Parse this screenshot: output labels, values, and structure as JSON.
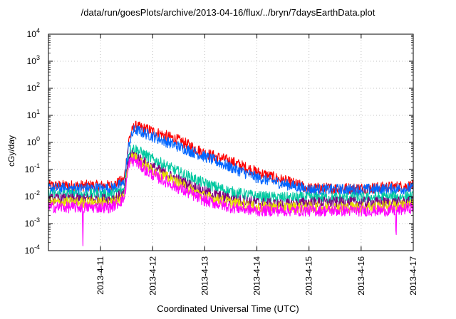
{
  "chart_data": {
    "type": "line",
    "title": "/data/run/goesPlots/archive/2013-04-16/flux/../bryn/7daysEarthData.plot",
    "xlabel": "Coordinated Universal Time (UTC)",
    "ylabel": "cGy/day",
    "y_scale": "log",
    "ylim_exponents": [
      -4,
      4
    ],
    "y_tick_labels": [
      {
        "base": "10",
        "exp": "4"
      },
      {
        "base": "10",
        "exp": "3"
      },
      {
        "base": "10",
        "exp": "2"
      },
      {
        "base": "10",
        "exp": "1"
      },
      {
        "base": "10",
        "exp": "0"
      },
      {
        "base": "10",
        "exp": "-1"
      },
      {
        "base": "10",
        "exp": "-2"
      },
      {
        "base": "10",
        "exp": "-3"
      },
      {
        "base": "10",
        "exp": "-4"
      }
    ],
    "xlim": [
      "2013-04-10",
      "2013-04-17"
    ],
    "x_tick_labels": [
      "2013-4-11",
      "2013-4-12",
      "2013-4-13",
      "2013-4-14",
      "2013-4-15",
      "2013-4-16",
      "2013-4-17"
    ],
    "grid": true,
    "legend": "none",
    "x_unit": "day (from 2013-04-10 00:00 UTC)",
    "series": [
      {
        "color": "#ff0000",
        "x": [
          0,
          1.2,
          1.45,
          1.55,
          1.65,
          1.9,
          2.5,
          3,
          3.5,
          4,
          4.5,
          5,
          6,
          7
        ],
        "y": [
          0.025,
          0.025,
          0.04,
          1.5,
          4,
          3,
          1.2,
          0.4,
          0.2,
          0.08,
          0.04,
          0.02,
          0.02,
          0.025
        ]
      },
      {
        "color": "#0066ff",
        "x": [
          0,
          1.2,
          1.45,
          1.55,
          1.65,
          1.9,
          2.5,
          3,
          3.5,
          4,
          4.5,
          5,
          6,
          7
        ],
        "y": [
          0.02,
          0.02,
          0.03,
          1,
          3,
          2,
          0.7,
          0.3,
          0.12,
          0.05,
          0.03,
          0.018,
          0.018,
          0.02
        ]
      },
      {
        "color": "#00c8a0",
        "x": [
          0,
          1.2,
          1.45,
          1.55,
          1.65,
          1.9,
          2.5,
          3,
          3.5,
          4,
          4.5,
          5,
          6,
          7
        ],
        "y": [
          0.012,
          0.012,
          0.018,
          0.5,
          0.6,
          0.3,
          0.08,
          0.03,
          0.015,
          0.01,
          0.009,
          0.009,
          0.009,
          0.01
        ]
      },
      {
        "color": "#800080",
        "x": [
          0,
          1.2,
          1.45,
          1.55,
          1.65,
          1.9,
          2.5,
          3,
          3.5,
          4,
          4.5,
          5,
          6,
          7
        ],
        "y": [
          0.008,
          0.008,
          0.012,
          0.3,
          0.35,
          0.15,
          0.04,
          0.015,
          0.008,
          0.006,
          0.005,
          0.006,
          0.006,
          0.006
        ]
      },
      {
        "color": "#e8e000",
        "x": [
          0,
          1.2,
          1.45,
          1.55,
          1.65,
          1.9,
          2.5,
          3,
          3.5,
          4,
          4.5,
          5,
          6,
          7
        ],
        "y": [
          0.006,
          0.006,
          0.01,
          0.25,
          0.3,
          0.12,
          0.03,
          0.01,
          0.006,
          0.004,
          0.004,
          0.004,
          0.004,
          0.005
        ]
      },
      {
        "color": "#ff00ff",
        "x": [
          0,
          0.65,
          0.66,
          0.67,
          1.2,
          1.45,
          1.55,
          1.65,
          1.9,
          2.5,
          3,
          3.5,
          4,
          4.5,
          5,
          6,
          6.66,
          6.67,
          6.68,
          7
        ],
        "y": [
          0.004,
          0.004,
          0.0001,
          0.004,
          0.004,
          0.008,
          0.18,
          0.22,
          0.08,
          0.02,
          0.007,
          0.004,
          0.003,
          0.003,
          0.003,
          0.003,
          0.003,
          0.0001,
          0.003,
          0.004
        ]
      }
    ]
  }
}
